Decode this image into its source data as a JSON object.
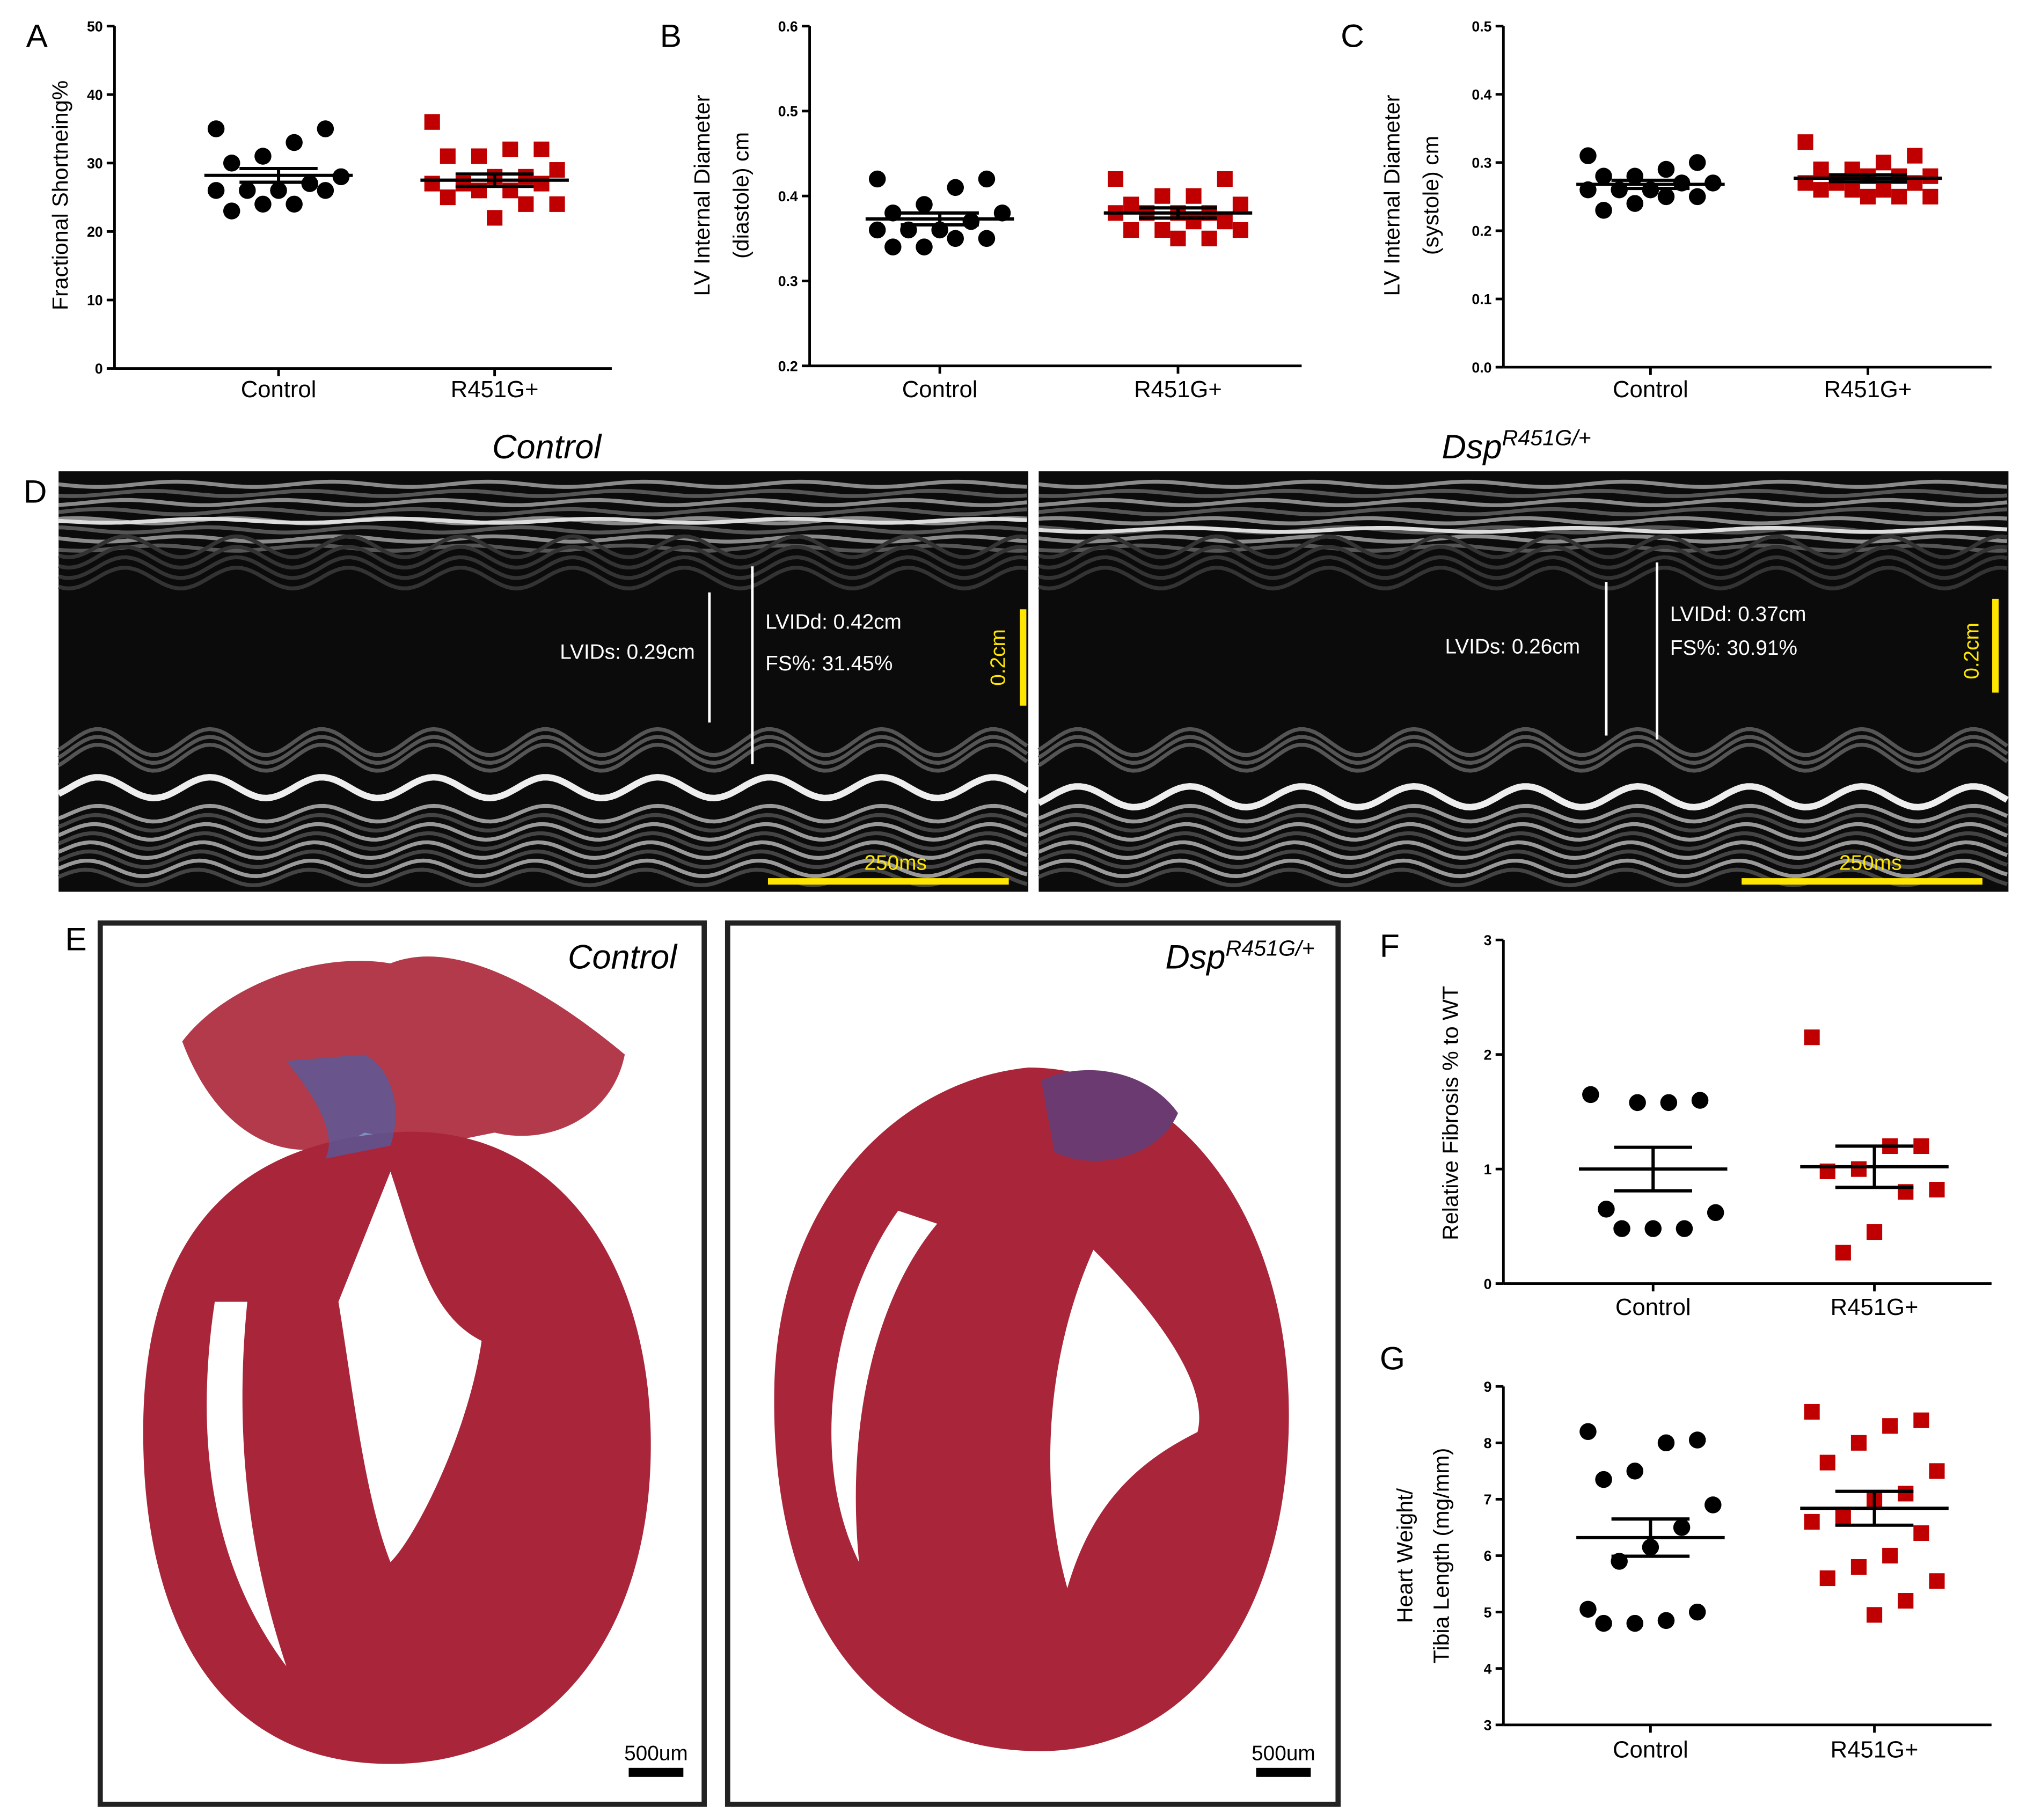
{
  "chart_data": [
    {
      "type": "strip",
      "panel": "A",
      "ylabel": [
        "Fractional Shortneing%"
      ],
      "categories": [
        "Control",
        "R451G+"
      ],
      "ylim": [
        0,
        50
      ],
      "yticks": [
        0,
        10,
        20,
        30,
        40,
        50
      ],
      "series": [
        {
          "color": "#000000",
          "marker": "circle",
          "values": [
            35,
            35,
            33,
            31,
            30,
            28,
            27,
            26,
            26,
            26,
            26,
            24,
            24,
            23
          ],
          "mean": 28.2,
          "sem": 1.0
        },
        {
          "color": "#c00000",
          "marker": "square",
          "values": [
            36,
            32,
            32,
            31,
            31,
            29,
            28,
            28,
            27,
            27,
            27,
            26,
            26,
            25,
            24,
            24,
            22
          ],
          "mean": 27.5,
          "sem": 0.9
        }
      ]
    },
    {
      "type": "strip",
      "panel": "B",
      "ylabel": [
        "LV Internal Diameter",
        "(diastole) cm"
      ],
      "categories": [
        "Control",
        "R451G+"
      ],
      "ylim": [
        0.2,
        0.6
      ],
      "yticks": [
        0.2,
        0.3,
        0.4,
        0.5,
        0.6
      ],
      "series": [
        {
          "color": "#000000",
          "marker": "circle",
          "values": [
            0.42,
            0.42,
            0.41,
            0.39,
            0.38,
            0.38,
            0.37,
            0.36,
            0.36,
            0.36,
            0.35,
            0.35,
            0.34,
            0.34
          ],
          "mean": 0.373,
          "sem": 0.007
        },
        {
          "color": "#c00000",
          "marker": "square",
          "values": [
            0.42,
            0.42,
            0.4,
            0.4,
            0.39,
            0.39,
            0.38,
            0.38,
            0.38,
            0.38,
            0.37,
            0.37,
            0.36,
            0.36,
            0.36,
            0.35,
            0.35
          ],
          "mean": 0.38,
          "sem": 0.006
        }
      ]
    },
    {
      "type": "strip",
      "panel": "C",
      "ylabel": [
        "LV Internal Diameter",
        "(systole) cm"
      ],
      "categories": [
        "Control",
        "R451G+"
      ],
      "ylim": [
        0,
        0.5
      ],
      "yticks": [
        {
          "value": 0,
          "label": "0.0"
        },
        0.1,
        0.2,
        0.3,
        0.4,
        0.5
      ],
      "series": [
        {
          "color": "#000000",
          "marker": "circle",
          "values": [
            0.31,
            0.3,
            0.29,
            0.28,
            0.28,
            0.27,
            0.27,
            0.26,
            0.26,
            0.26,
            0.25,
            0.25,
            0.24,
            0.23
          ],
          "mean": 0.268,
          "sem": 0.006
        },
        {
          "color": "#c00000",
          "marker": "square",
          "values": [
            0.33,
            0.31,
            0.3,
            0.29,
            0.29,
            0.28,
            0.28,
            0.28,
            0.27,
            0.27,
            0.27,
            0.26,
            0.26,
            0.26,
            0.25,
            0.25,
            0.25
          ],
          "mean": 0.277,
          "sem": 0.005
        }
      ]
    },
    {
      "type": "strip",
      "panel": "F",
      "ylabel": [
        "Relative Fibrosis % to WT"
      ],
      "categories": [
        "Control",
        "R451G+"
      ],
      "ylim": [
        0,
        3
      ],
      "yticks": [
        0,
        1,
        2,
        3
      ],
      "series": [
        {
          "color": "#000000",
          "marker": "circle",
          "values": [
            1.65,
            1.6,
            1.58,
            1.58,
            0.65,
            0.62,
            0.48,
            0.48,
            0.48
          ],
          "mean": 1.0,
          "sem": 0.19
        },
        {
          "color": "#c00000",
          "marker": "square",
          "values": [
            2.15,
            1.2,
            1.2,
            1.0,
            0.98,
            0.82,
            0.8,
            0.45,
            0.27
          ],
          "mean": 1.02,
          "sem": 0.18
        }
      ]
    },
    {
      "type": "strip",
      "panel": "G",
      "ylabel": [
        "Heart Weight/",
        "Tibia Length (mg/mm)"
      ],
      "categories": [
        "Control",
        "R451G+"
      ],
      "ylim": [
        3,
        9
      ],
      "yticks": [
        3,
        4,
        5,
        6,
        7,
        8,
        9
      ],
      "series": [
        {
          "color": "#000000",
          "marker": "circle",
          "values": [
            8.2,
            8.05,
            8.0,
            7.5,
            7.35,
            6.9,
            6.5,
            6.15,
            5.9,
            5.05,
            5.0,
            4.85,
            4.8,
            4.8
          ],
          "mean": 6.32,
          "sem": 0.33
        },
        {
          "color": "#c00000",
          "marker": "square",
          "values": [
            8.55,
            8.4,
            8.3,
            8.0,
            7.65,
            7.5,
            7.1,
            7.0,
            6.7,
            6.6,
            6.4,
            6.0,
            5.8,
            5.6,
            5.55,
            5.2,
            4.95
          ],
          "mean": 6.84,
          "sem": 0.3
        }
      ]
    }
  ],
  "echo": {
    "panel": "D",
    "images": [
      {
        "title": {
          "text": "Control"
        },
        "lvids": "LVIDs: 0.29cm",
        "lvidd": "LVIDd: 0.42cm",
        "fs": "FS%: 31.45%",
        "depth_scale": "0.2cm",
        "time_scale": "250ms"
      },
      {
        "title": {
          "text": "Dsp",
          "superscript": "R451G/+"
        },
        "lvids": "LVIDs: 0.26cm",
        "lvidd": "LVIDd: 0.37cm",
        "fs": "FS%: 30.91%",
        "depth_scale": "0.2cm",
        "time_scale": "250ms"
      }
    ]
  },
  "histology": {
    "panel": "E",
    "images": [
      {
        "title": {
          "text": "Control"
        },
        "scale": "500um"
      },
      {
        "title": {
          "text": "Dsp",
          "superscript": "R451G/+"
        },
        "scale": "500um"
      }
    ]
  }
}
